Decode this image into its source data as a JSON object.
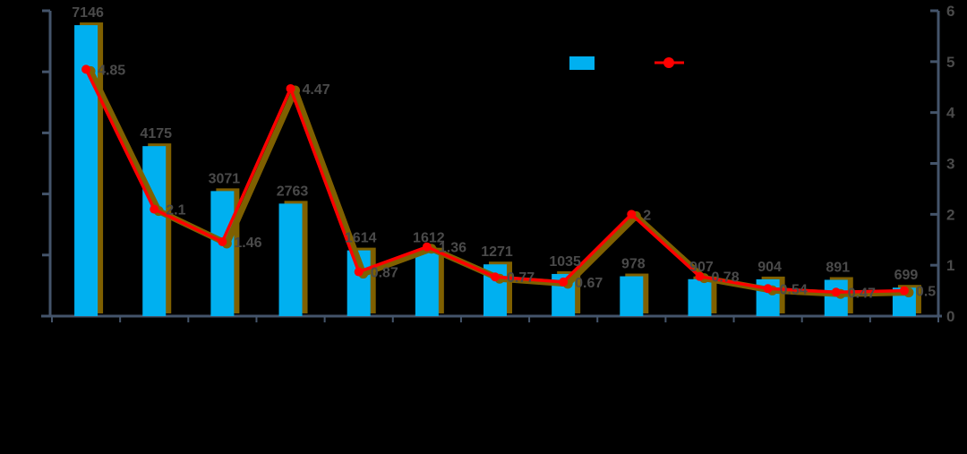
{
  "colors": {
    "background": "#000000",
    "bar": "#00B0F0",
    "line": "#FF0000",
    "shadow": "#7F6000",
    "axis": "#44546A",
    "value_label": "#4A4A4A"
  },
  "chart_data": {
    "type": "combo-bar-line",
    "n_categories": 13,
    "category_labels_visible": false,
    "title_visible": false,
    "series": [
      {
        "name": "bar-series",
        "type": "bar",
        "axis": "left",
        "color": "#00B0F0",
        "values": [
          7146,
          4175,
          3071,
          2763,
          1614,
          1612,
          1271,
          1035,
          978,
          907,
          904,
          891,
          699
        ],
        "data_labels": [
          "7146",
          "4175",
          "3071",
          "2763",
          "1614",
          "1612",
          "1271",
          "1035",
          "978",
          "907",
          "904",
          "891",
          "699"
        ]
      },
      {
        "name": "line-series",
        "type": "line",
        "axis": "right",
        "color": "#FF0000",
        "marker": "circle",
        "values": [
          4.85,
          2.1,
          1.46,
          4.47,
          0.87,
          1.36,
          0.77,
          0.67,
          2,
          0.78,
          0.54,
          0.47,
          0.5
        ],
        "data_labels": [
          "4.85",
          "2.1",
          "1.46",
          "4.47",
          "0.87",
          "1.36",
          "0.77",
          "0.67",
          "2",
          "0.78",
          "0.54",
          "0.47",
          "0.5"
        ]
      }
    ],
    "left_axis": {
      "min": 0,
      "max": 7500,
      "step": 1500,
      "tick_labels_visible": false
    },
    "right_axis": {
      "min": 0,
      "max": 6,
      "step": 1,
      "tick_labels": [
        "0",
        "1",
        "2",
        "3",
        "4",
        "5",
        "6"
      ]
    },
    "legend": {
      "position": "top-center",
      "entries": [
        {
          "swatch": "bar",
          "color": "#00B0F0",
          "label_text_visible": false
        },
        {
          "swatch": "line-marker",
          "color": "#FF0000",
          "label_text_visible": false
        }
      ]
    }
  }
}
